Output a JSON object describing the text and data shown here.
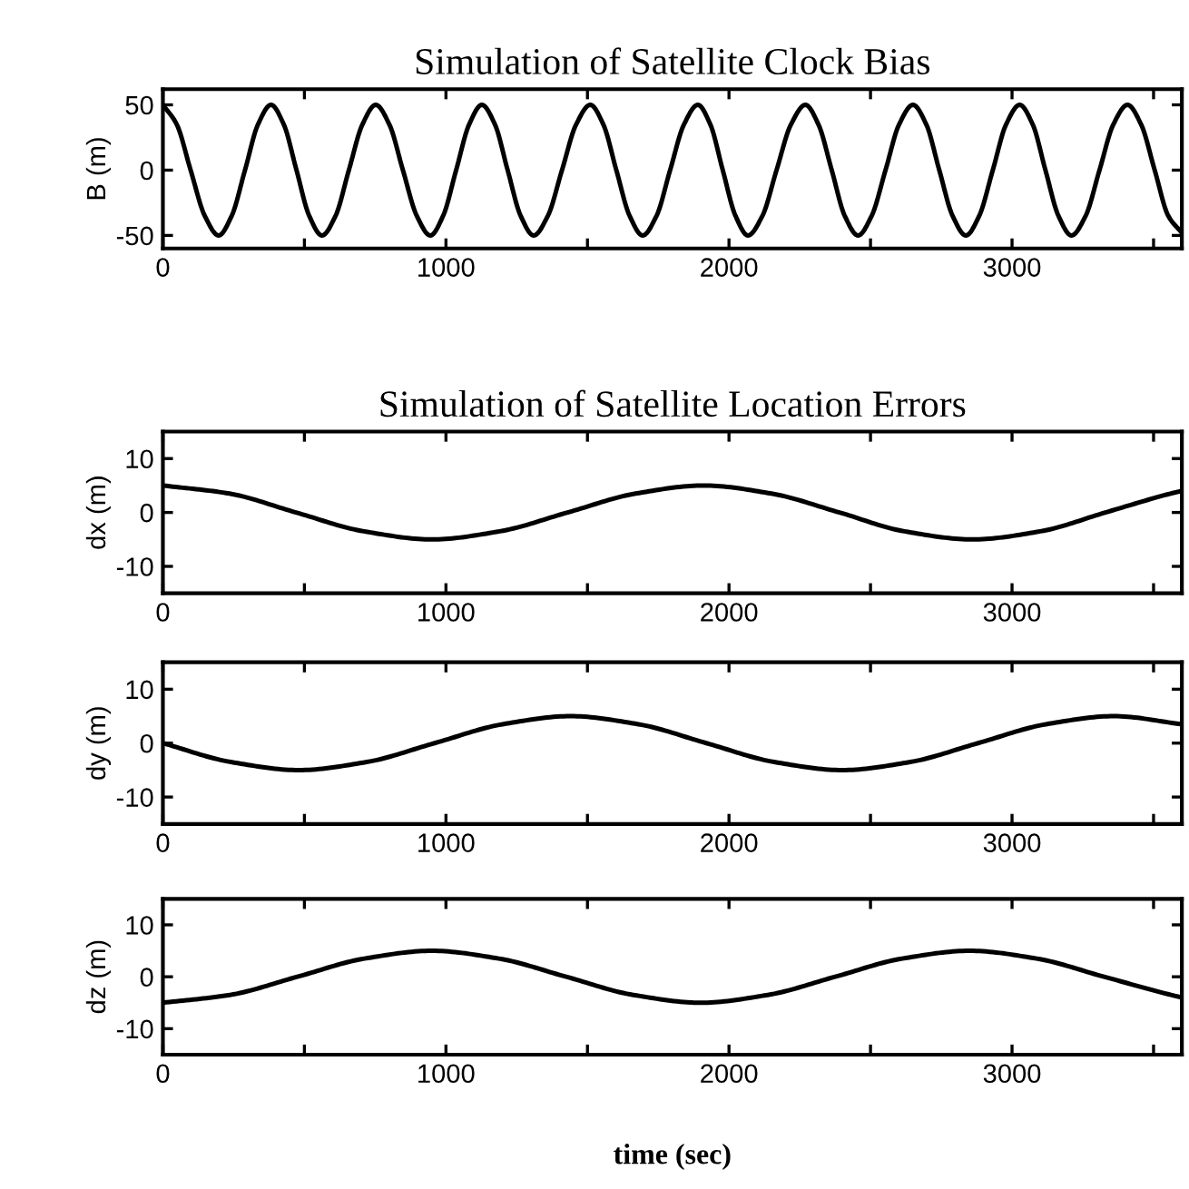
{
  "chart_data": [
    {
      "type": "line",
      "title": "Simulation of Satellite Clock Bias",
      "ylabel": "B (m)",
      "xlim": [
        0,
        3600
      ],
      "ylim": [
        -60,
        62
      ],
      "xticks": [
        0,
        {
          "value": 500,
          "label": null
        },
        1000,
        {
          "value": 1500,
          "label": null
        },
        2000,
        {
          "value": 2500,
          "label": null
        },
        3000,
        {
          "value": 3500,
          "label": null
        }
      ],
      "yticks": [
        -50,
        0,
        50
      ],
      "x": [
        0,
        49,
        98,
        148,
        197,
        243,
        290,
        336,
        382,
        427,
        472,
        517,
        562,
        610,
        657,
        705,
        752,
        800,
        848,
        897,
        945,
        990,
        1036,
        1082,
        1127,
        1173,
        1218,
        1264,
        1310,
        1360,
        1410,
        1460,
        1510,
        1556,
        1602,
        1649,
        1695,
        1744,
        1792,
        1841,
        1890,
        1934,
        1978,
        2023,
        2067,
        2118,
        2168,
        2219,
        2270,
        2316,
        2363,
        2409,
        2456,
        2504,
        2553,
        2601,
        2650,
        2697,
        2743,
        2790,
        2837,
        2884,
        2932,
        2979,
        3027,
        3073,
        3118,
        3164,
        3210,
        3260,
        3309,
        3358,
        3408,
        3456,
        3504,
        3552,
        3600
      ],
      "series": [
        {
          "color": "#000000",
          "values": [
            50,
            35,
            0,
            -35,
            -50,
            -35,
            0,
            35,
            50,
            35,
            0,
            -35,
            -50,
            -35,
            0,
            35,
            50,
            35,
            0,
            -35,
            -50,
            -35,
            0,
            35,
            50,
            35,
            0,
            -35,
            -50,
            -35,
            0,
            35,
            50,
            35,
            0,
            -35,
            -50,
            -35,
            0,
            35,
            50,
            35,
            0,
            -35,
            -50,
            -35,
            0,
            35,
            50,
            35,
            0,
            -35,
            -50,
            -35,
            0,
            35,
            50,
            35,
            0,
            -35,
            -50,
            -35,
            0,
            35,
            50,
            35,
            0,
            -35,
            -50,
            -35,
            0,
            35,
            50,
            35,
            0,
            -35,
            -48
          ]
        }
      ]
    },
    {
      "type": "line",
      "title": "Simulation of Satellite Location Errors",
      "ylabel": "dx (m)",
      "xlim": [
        0,
        3600
      ],
      "ylim": [
        -15,
        15
      ],
      "xticks": [
        0,
        {
          "value": 500,
          "label": null
        },
        1000,
        {
          "value": 1500,
          "label": null
        },
        2000,
        {
          "value": 2500,
          "label": null
        },
        3000,
        {
          "value": 3500,
          "label": null
        }
      ],
      "yticks": [
        -10,
        0,
        10
      ],
      "x": [
        0,
        235,
        470,
        710,
        950,
        1190,
        1430,
        1670,
        1910,
        2150,
        2390,
        2620,
        2860,
        3100,
        3330,
        3560,
        3600
      ],
      "series": [
        {
          "color": "#000000",
          "values": [
            5,
            3.5,
            0,
            -3.5,
            -5,
            -3.5,
            0,
            3.5,
            5,
            3.5,
            0,
            -3.5,
            -5,
            -3.5,
            0,
            3.5,
            4
          ]
        }
      ]
    },
    {
      "type": "line",
      "ylabel": "dy (m)",
      "xlim": [
        0,
        3600
      ],
      "ylim": [
        -15,
        15
      ],
      "xticks": [
        0,
        {
          "value": 500,
          "label": null
        },
        1000,
        {
          "value": 1500,
          "label": null
        },
        2000,
        {
          "value": 2500,
          "label": null
        },
        3000,
        {
          "value": 3500,
          "label": null
        }
      ],
      "yticks": [
        -10,
        0,
        10
      ],
      "x": [
        0,
        240,
        480,
        720,
        960,
        1200,
        1440,
        1680,
        1920,
        2160,
        2400,
        2640,
        2880,
        3120,
        3360,
        3600
      ],
      "series": [
        {
          "color": "#000000",
          "values": [
            0,
            -3.5,
            -5,
            -3.5,
            0,
            3.5,
            5,
            3.5,
            0,
            -3.5,
            -5,
            -3.5,
            0,
            3.5,
            5,
            3.5
          ]
        }
      ]
    },
    {
      "type": "line",
      "xlabel": "time (sec)",
      "ylabel": "dz (m)",
      "xlim": [
        0,
        3600
      ],
      "ylim": [
        -15,
        15
      ],
      "xticks": [
        0,
        {
          "value": 500,
          "label": null
        },
        1000,
        {
          "value": 1500,
          "label": null
        },
        2000,
        {
          "value": 2500,
          "label": null
        },
        3000,
        {
          "value": 3500,
          "label": null
        }
      ],
      "yticks": [
        -10,
        0,
        10
      ],
      "x": [
        0,
        237,
        475,
        712,
        950,
        1187,
        1425,
        1662,
        1900,
        2137,
        2375,
        2612,
        2850,
        3087,
        3325,
        3562,
        3600
      ],
      "series": [
        {
          "color": "#000000",
          "values": [
            -5,
            -3.5,
            0,
            3.5,
            5,
            3.5,
            0,
            -3.5,
            -5,
            -3.5,
            0,
            3.5,
            5,
            3.5,
            0,
            -3.5,
            -4
          ]
        }
      ]
    }
  ]
}
